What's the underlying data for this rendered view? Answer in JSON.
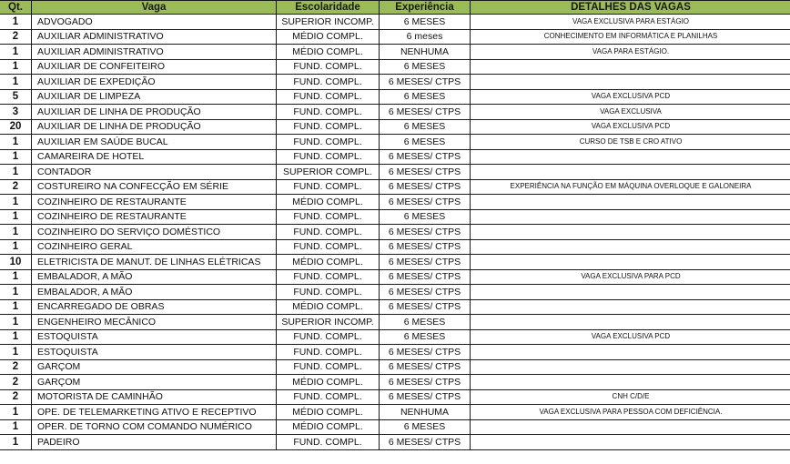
{
  "header": {
    "qt": "Qt.",
    "vaga": "Vaga",
    "escolaridade": "Escolaridade",
    "experiencia": "Experiência",
    "detalhes": "DETALHES DAS VAGAS"
  },
  "header_color": "#9bbb59",
  "rows": [
    {
      "qt": "1",
      "vaga": "ADVOGADO",
      "escolaridade": "SUPERIOR INCOMP.",
      "experiencia": "6 MESES",
      "detalhes": "VAGA EXCLUSIVA PARA ESTÁGIO"
    },
    {
      "qt": "2",
      "vaga": "AUXILIAR ADMINISTRATIVO",
      "escolaridade": "MÉDIO COMPL.",
      "experiencia": "6 meses",
      "detalhes": "CONHECIMENTO EM INFORMÁTICA E PLANILHAS"
    },
    {
      "qt": "1",
      "vaga": "AUXILIAR ADMINISTRATIVO",
      "escolaridade": "MÉDIO COMPL.",
      "experiencia": "NENHUMA",
      "detalhes": "VAGA PARA ESTÁGIO."
    },
    {
      "qt": "1",
      "vaga": "AUXILIAR DE CONFEITEIRO",
      "escolaridade": "FUND. COMPL.",
      "experiencia": "6 MESES",
      "detalhes": ""
    },
    {
      "qt": "1",
      "vaga": "AUXILIAR DE EXPEDIÇÃO",
      "escolaridade": "FUND. COMPL.",
      "experiencia": "6 MESES/ CTPS",
      "detalhes": ""
    },
    {
      "qt": "5",
      "vaga": "AUXILIAR DE LIMPEZA",
      "escolaridade": "FUND. COMPL.",
      "experiencia": "6 MESES",
      "detalhes": "VAGA EXCLUSIVA PCD"
    },
    {
      "qt": "3",
      "vaga": "AUXILIAR DE LINHA DE PRODUÇÃO",
      "escolaridade": "FUND. COMPL.",
      "experiencia": "6 MESES/ CTPS",
      "detalhes": "VAGA EXCLUSIVA"
    },
    {
      "qt": "20",
      "vaga": "AUXILIAR DE LINHA DE PRODUÇÃO",
      "escolaridade": "FUND. COMPL.",
      "experiencia": "6 MESES",
      "detalhes": "VAGA EXCLUSIVA PCD"
    },
    {
      "qt": "1",
      "vaga": "AUXILIAR EM SAÚDE BUCAL",
      "escolaridade": "FUND. COMPL.",
      "experiencia": "6 MESES",
      "detalhes": "CURSO DE TSB E CRO ATIVO"
    },
    {
      "qt": "1",
      "vaga": "CAMAREIRA DE HOTEL",
      "escolaridade": "FUND. COMPL.",
      "experiencia": "6 MESES/ CTPS",
      "detalhes": ""
    },
    {
      "qt": "1",
      "vaga": "CONTADOR",
      "escolaridade": "SUPERIOR COMPL.",
      "experiencia": "6 MESES/ CTPS",
      "detalhes": ""
    },
    {
      "qt": "2",
      "vaga": "COSTUREIRO NA CONFECÇÃO EM SÉRIE",
      "escolaridade": "FUND. COMPL.",
      "experiencia": "6 MESES/ CTPS",
      "detalhes": "EXPERIÊNCIA NA FUNÇÃO EM MÁQUINA OVERLOQUE E GALONEIRA"
    },
    {
      "qt": "1",
      "vaga": "COZINHEIRO DE RESTAURANTE",
      "escolaridade": "MÉDIO COMPL.",
      "experiencia": "6 MESES/ CTPS",
      "detalhes": ""
    },
    {
      "qt": "1",
      "vaga": "COZINHEIRO DE RESTAURANTE",
      "escolaridade": "FUND. COMPL.",
      "experiencia": "6 MESES",
      "detalhes": ""
    },
    {
      "qt": "1",
      "vaga": "COZINHEIRO DO SERVIÇO DOMÉSTICO",
      "escolaridade": "FUND. COMPL.",
      "experiencia": "6 MESES/ CTPS",
      "detalhes": ""
    },
    {
      "qt": "1",
      "vaga": "COZINHEIRO GERAL",
      "escolaridade": "FUND. COMPL.",
      "experiencia": "6 MESES/ CTPS",
      "detalhes": ""
    },
    {
      "qt": "10",
      "vaga": "ELETRICISTA DE MANUT. DE LINHAS ELÉTRICAS",
      "escolaridade": "MÉDIO COMPL.",
      "experiencia": "6 MESES/ CTPS",
      "detalhes": ""
    },
    {
      "qt": "1",
      "vaga": "EMBALADOR, A MÃO",
      "escolaridade": "FUND. COMPL.",
      "experiencia": "6 MESES/ CTPS",
      "detalhes": "VAGA EXCLUSIVA PARA PCD"
    },
    {
      "qt": "1",
      "vaga": "EMBALADOR, A MÃO",
      "escolaridade": "FUND. COMPL.",
      "experiencia": "6 MESES/ CTPS",
      "detalhes": ""
    },
    {
      "qt": "1",
      "vaga": "ENCARREGADO DE OBRAS",
      "escolaridade": "MÉDIO COMPL.",
      "experiencia": "6 MESES/ CTPS",
      "detalhes": ""
    },
    {
      "qt": "1",
      "vaga": "ENGENHEIRO MECÂNICO",
      "escolaridade": "SUPERIOR INCOMP.",
      "experiencia": "6 MESES",
      "detalhes": ""
    },
    {
      "qt": "1",
      "vaga": "ESTOQUISTA",
      "escolaridade": "FUND. COMPL.",
      "experiencia": "6 MESES",
      "detalhes": "VAGA EXCLUSIVA PCD"
    },
    {
      "qt": "1",
      "vaga": "ESTOQUISTA",
      "escolaridade": "FUND. COMPL.",
      "experiencia": "6 MESES/ CTPS",
      "detalhes": ""
    },
    {
      "qt": "2",
      "vaga": "GARÇOM",
      "escolaridade": "FUND. COMPL.",
      "experiencia": "6 MESES/ CTPS",
      "detalhes": ""
    },
    {
      "qt": "2",
      "vaga": "GARÇOM",
      "escolaridade": "MÉDIO COMPL.",
      "experiencia": "6 MESES/ CTPS",
      "detalhes": ""
    },
    {
      "qt": "2",
      "vaga": "MOTORISTA DE CAMINHÃO",
      "escolaridade": "FUND. COMPL.",
      "experiencia": "6 MESES/ CTPS",
      "detalhes": "CNH C/D/E"
    },
    {
      "qt": "1",
      "vaga": "OPE. DE TELEMARKETING ATIVO E RECEPTIVO",
      "escolaridade": "MÉDIO COMPL.",
      "experiencia": "NENHUMA",
      "detalhes": "VAGA EXCLUSIVA PARA PESSOA COM DEFICIÊNCIA."
    },
    {
      "qt": "1",
      "vaga": "OPER. DE TORNO COM COMANDO NUMÉRICO",
      "escolaridade": "MÉDIO COMPL.",
      "experiencia": "6 MESES",
      "detalhes": ""
    },
    {
      "qt": "1",
      "vaga": "PADEIRO",
      "escolaridade": "FUND. COMPL.",
      "experiencia": "6 MESES/ CTPS",
      "detalhes": ""
    }
  ]
}
